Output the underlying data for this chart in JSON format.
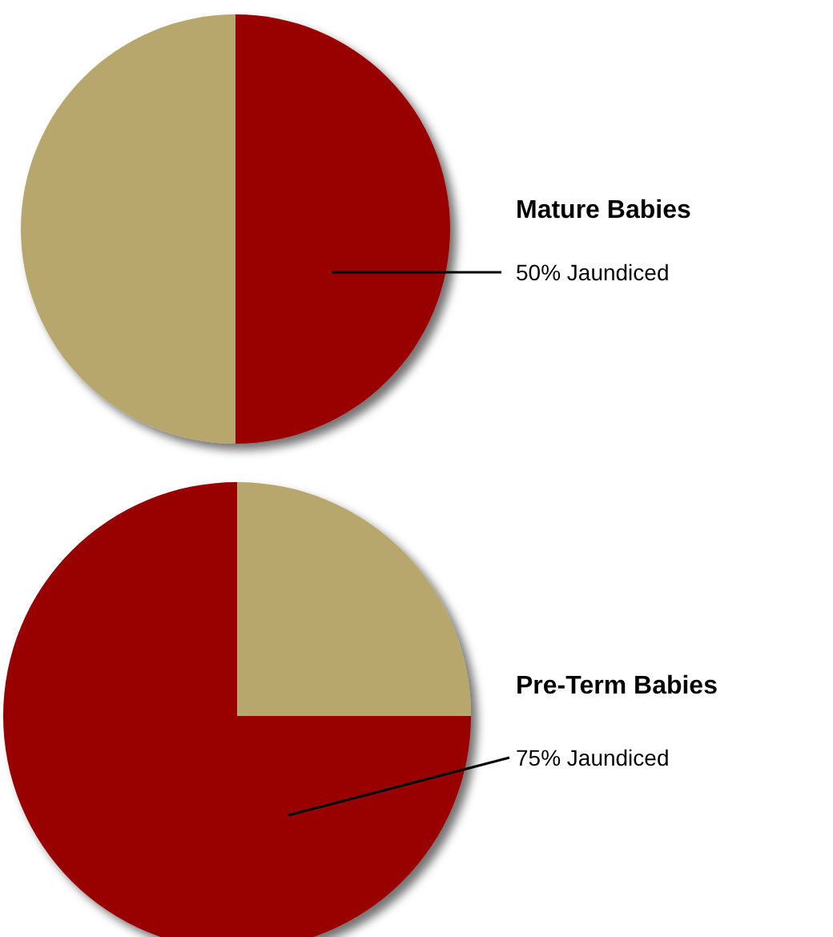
{
  "chart_data": [
    {
      "type": "pie",
      "title": "Mature Babies",
      "categories": [
        null,
        null
      ],
      "values": [
        50,
        50
      ],
      "colors": [
        "#990000",
        "#b8a76c"
      ],
      "value_labels": [
        "50% Jaundiced",
        null
      ]
    },
    {
      "type": "pie",
      "title": "Pre-Term Babies",
      "categories": [
        null,
        null
      ],
      "values": [
        25,
        75
      ],
      "colors": [
        "#b8a76c",
        "#990000"
      ],
      "value_labels": [
        null,
        "75% Jaundiced"
      ]
    }
  ]
}
